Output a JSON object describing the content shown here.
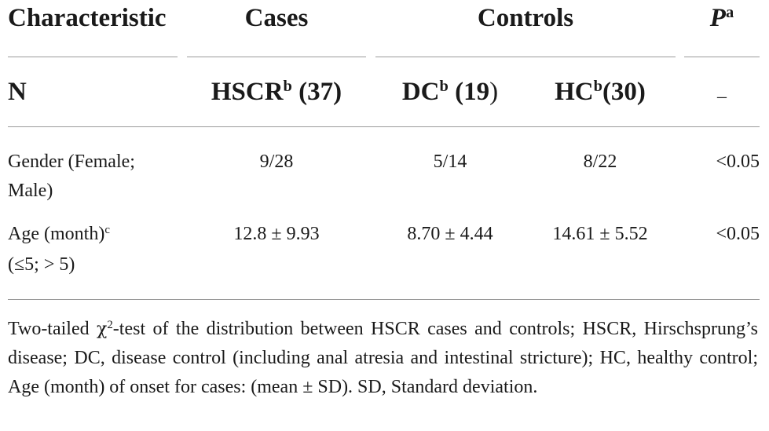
{
  "table": {
    "header_row1": {
      "characteristic": "Characteristic",
      "cases": "Cases",
      "controls": "Controls",
      "p_label": "P",
      "p_sup": "a"
    },
    "header_row2": {
      "n_label": "N",
      "hscr_label": "HSCR",
      "hscr_sup": "b",
      "hscr_count": " (37)",
      "dc_label": "DC",
      "dc_sup": "b",
      "dc_count_open": " (19",
      "dc_count_close": ")",
      "hc_label": "HC",
      "hc_sup": "b",
      "hc_count": "(30)",
      "p_value": "–"
    },
    "rows": [
      {
        "characteristic_line1": "Gender (Female;",
        "characteristic_line2": "Male)",
        "hscr": "9/28",
        "dc": "5/14",
        "hc": "8/22",
        "p": "<0.05"
      },
      {
        "characteristic_line1": "Age (month)",
        "characteristic_sup": "c",
        "characteristic_line2": "(≤5; > 5)",
        "hscr": "12.8 ± 9.93",
        "dc": "8.70 ± 4.44",
        "hc": "14.61 ± 5.52",
        "p": "<0.05"
      }
    ]
  },
  "footnote": {
    "prefix": "Two-tailed ",
    "chi": "χ",
    "chi_sup": "2",
    "rest": "-test of the distribution between HSCR cases and controls; HSCR, Hirschsprung’s disease; DC, disease control (including anal atresia and intestinal stricture); HC, healthy control; Age (month) of onset for cases: (mean ± SD). SD, Standard deviation."
  }
}
